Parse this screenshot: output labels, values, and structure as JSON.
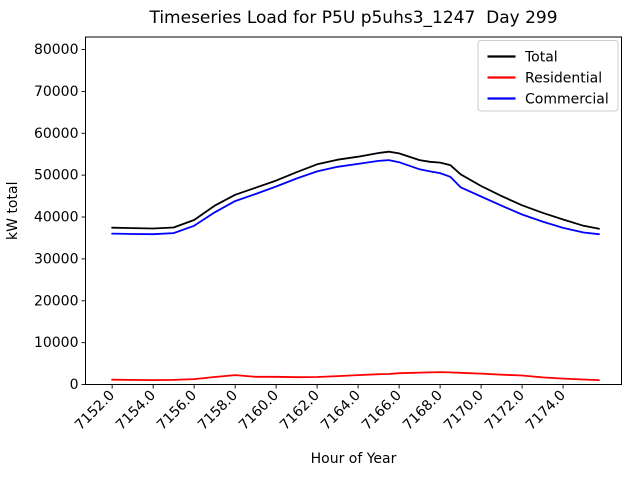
{
  "chart_data": {
    "type": "line",
    "title": "Timeseries Load for P5U p5uhs3_1247  Day 299",
    "xlabel": "Hour of Year",
    "ylabel": "kW total",
    "xlim": [
      7150.7,
      7176.85
    ],
    "ylim": [
      0,
      83000
    ],
    "grid": false,
    "xtick_values": [
      7152,
      7154,
      7156,
      7158,
      7160,
      7162,
      7164,
      7166,
      7168,
      7170,
      7172,
      7174
    ],
    "xtick_labels": [
      "7152.0",
      "7154.0",
      "7156.0",
      "7158.0",
      "7160.0",
      "7162.0",
      "7164.0",
      "7166.0",
      "7168.0",
      "7170.0",
      "7172.0",
      "7174.0"
    ],
    "ytick_values": [
      0,
      10000,
      20000,
      30000,
      40000,
      50000,
      60000,
      70000,
      80000
    ],
    "ytick_labels": [
      "0",
      "10000",
      "20000",
      "30000",
      "40000",
      "50000",
      "60000",
      "70000",
      "80000"
    ],
    "legend": {
      "location": "upper right"
    },
    "x": [
      7152,
      7153,
      7154,
      7155,
      7156,
      7157,
      7158,
      7159,
      7160,
      7161,
      7162,
      7163,
      7164,
      7165,
      7165.5,
      7166,
      7167,
      7167.5,
      7168,
      7168.5,
      7169,
      7170,
      7171,
      7172,
      7173,
      7174,
      7175,
      7175.75
    ],
    "series": [
      {
        "name": "Total",
        "color": "#000000",
        "values": [
          37450,
          37350,
          37250,
          37500,
          39300,
          42700,
          45300,
          47000,
          48700,
          50700,
          52600,
          53700,
          54400,
          55300,
          55600,
          55200,
          53600,
          53200,
          53000,
          52400,
          50200,
          47400,
          45000,
          42800,
          41000,
          39400,
          37900,
          37200
        ]
      },
      {
        "name": "Residential",
        "color": "#ff0000",
        "values": [
          1150,
          1100,
          1050,
          1100,
          1300,
          1800,
          2250,
          1850,
          1850,
          1750,
          1800,
          2000,
          2250,
          2450,
          2500,
          2700,
          2850,
          2900,
          2950,
          2900,
          2800,
          2600,
          2350,
          2150,
          1700,
          1400,
          1200,
          1050
        ]
      },
      {
        "name": "Commercial",
        "color": "#0000ff",
        "values": [
          36050,
          35950,
          35900,
          36150,
          37900,
          41100,
          43800,
          45500,
          47300,
          49200,
          50900,
          52000,
          52700,
          53400,
          53600,
          53100,
          51400,
          50900,
          50500,
          49600,
          47100,
          44900,
          42700,
          40600,
          38900,
          37400,
          36300,
          35900
        ]
      }
    ]
  }
}
